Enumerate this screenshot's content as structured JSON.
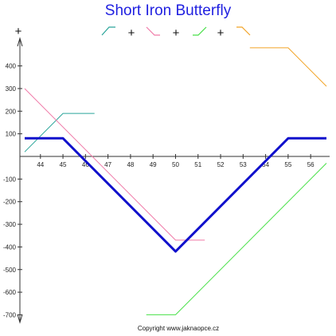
{
  "chart_data": {
    "type": "line",
    "title": "Short Iron Butterfly",
    "copyright": "Copyright www.jaknaopce.cz",
    "xlabel": "",
    "ylabel": "",
    "xlim": [
      43.3,
      56.8
    ],
    "ylim": [
      -730,
      470
    ],
    "x_ticks": [
      "44",
      "45",
      "46",
      "47",
      "48",
      "49",
      "50",
      "51",
      "52",
      "53",
      "54",
      "55",
      "56"
    ],
    "y_ticks": [
      "400",
      "300",
      "200",
      "100",
      "-100",
      "-200",
      "-300",
      "-400",
      "-500",
      "-600",
      "-700"
    ],
    "legend_symbols": [
      "+",
      "+",
      "+",
      "+"
    ],
    "minus_symbol": "–",
    "plus_symbol": "+",
    "series": [
      {
        "role": "leg-1",
        "color": "#2aa59a",
        "width": 1,
        "x": [
          43.3,
          45,
          46.4
        ],
        "y": [
          20,
          190,
          190
        ]
      },
      {
        "role": "leg-2",
        "color": "#f07aa8",
        "width": 1,
        "x": [
          43.3,
          50,
          51.3
        ],
        "y": [
          300,
          -370,
          -370
        ]
      },
      {
        "role": "leg-3",
        "color": "#48e048",
        "width": 1,
        "x": [
          48.7,
          50,
          56.7
        ],
        "y": [
          -700,
          -700,
          -30
        ]
      },
      {
        "role": "leg-4",
        "color": "#f2a326",
        "width": 1,
        "x": [
          53.3,
          55,
          56.7
        ],
        "y": [
          480,
          480,
          310
        ]
      },
      {
        "role": "result",
        "color": "#1111cc",
        "width": 3,
        "x": [
          43.3,
          45,
          50,
          55,
          56.7
        ],
        "y": [
          80,
          80,
          -420,
          80,
          80
        ]
      }
    ],
    "legend_icons": [
      {
        "color": "#2aa59a",
        "shape": "rise-flat"
      },
      {
        "color": "#f07aa8",
        "shape": "fall-flat"
      },
      {
        "color": "#48e048",
        "shape": "flat-rise"
      },
      {
        "color": "#f2a326",
        "shape": "flat-fall"
      }
    ]
  }
}
